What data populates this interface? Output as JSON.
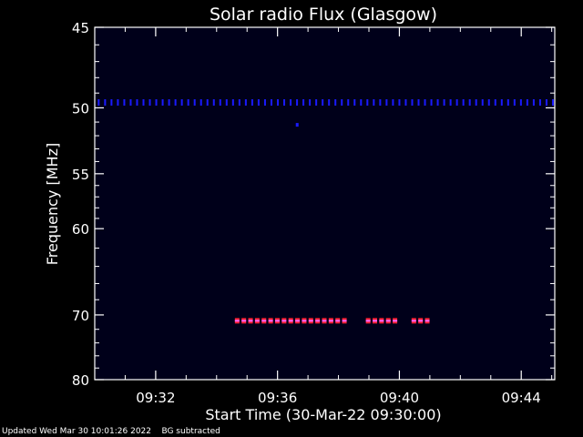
{
  "chart_data": {
    "type": "heatmap",
    "title": "Solar radio Flux (Glasgow)",
    "xlabel": "Start Time (30-Mar-22 09:30:00)",
    "ylabel": "Frequency [MHz]",
    "xlim_minutes_after_0930": [
      0,
      15.1
    ],
    "ylim_mhz": [
      45,
      80
    ],
    "y_scale": "reciprocal (frequency decreases upward)",
    "x_ticks": [
      {
        "label": "09:32",
        "minute": 2
      },
      {
        "label": "09:36",
        "minute": 6
      },
      {
        "label": "09:40",
        "minute": 10
      },
      {
        "label": "09:44",
        "minute": 14
      }
    ],
    "y_ticks": [
      {
        "label": "45",
        "mhz": 45
      },
      {
        "label": "50",
        "mhz": 50
      },
      {
        "label": "55",
        "mhz": 55
      },
      {
        "label": "60",
        "mhz": 60
      },
      {
        "label": "70",
        "mhz": 70
      },
      {
        "label": "80",
        "mhz": 80
      }
    ],
    "features": [
      {
        "name": "blue dashed emission line",
        "freq_mhz": 49.6,
        "minute_start": 0,
        "minute_end": 15.1,
        "color": "#1a1aff"
      },
      {
        "name": "red/magenta interference segments",
        "freq_mhz": 70.8,
        "color": "#ff2030",
        "segments_minutes": [
          [
            4.6,
            8.3
          ],
          [
            8.9,
            9.9
          ],
          [
            10.4,
            10.9
          ]
        ]
      },
      {
        "name": "isolated blue dot",
        "freq_mhz": 51.2,
        "minute": 6.6,
        "color": "#1a1aff"
      }
    ],
    "colors": {
      "background": "#000000",
      "plot_background": "#00001a",
      "axes": "#ffffff"
    }
  },
  "footer": {
    "updated": "Updated Wed Mar 30 10:01:26 2022",
    "note": "BG subtracted"
  }
}
